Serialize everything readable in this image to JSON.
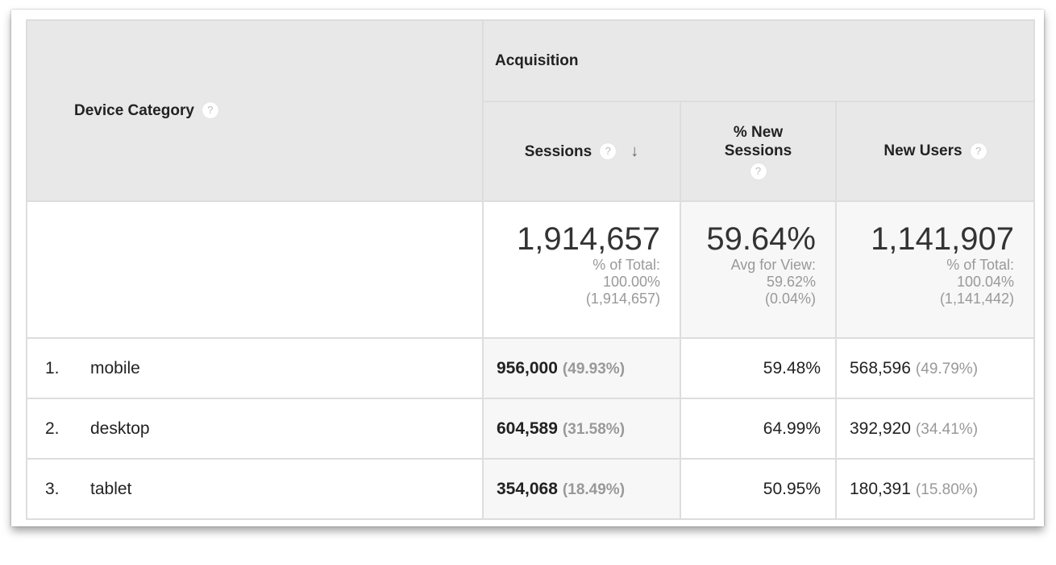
{
  "header": {
    "dimension": "Device Category",
    "group": "Acquisition",
    "columns": [
      "Sessions",
      "% New Sessions",
      "New Users"
    ],
    "help_icon": "?",
    "sort_icon": "arrow-down"
  },
  "summary": {
    "sessions": {
      "value": "1,914,657",
      "label": "% of Total:",
      "pct": "100.00%",
      "total": "(1,914,657)"
    },
    "new_sessions": {
      "value": "59.64%",
      "label": "Avg for View:",
      "pct": "59.62%",
      "total": "(0.04%)"
    },
    "new_users": {
      "value": "1,141,907",
      "label": "% of Total:",
      "pct": "100.04%",
      "total": "(1,141,442)"
    }
  },
  "rows": [
    {
      "index": "1.",
      "name": "mobile",
      "sessions": "956,000",
      "sessions_pct": "(49.93%)",
      "new_sessions": "59.48%",
      "new_users": "568,596",
      "new_users_pct": "(49.79%)"
    },
    {
      "index": "2.",
      "name": "desktop",
      "sessions": "604,589",
      "sessions_pct": "(31.58%)",
      "new_sessions": "64.99%",
      "new_users": "392,920",
      "new_users_pct": "(34.41%)"
    },
    {
      "index": "3.",
      "name": "tablet",
      "sessions": "354,068",
      "sessions_pct": "(18.49%)",
      "new_sessions": "50.95%",
      "new_users": "180,391",
      "new_users_pct": "(15.80%)"
    }
  ]
}
